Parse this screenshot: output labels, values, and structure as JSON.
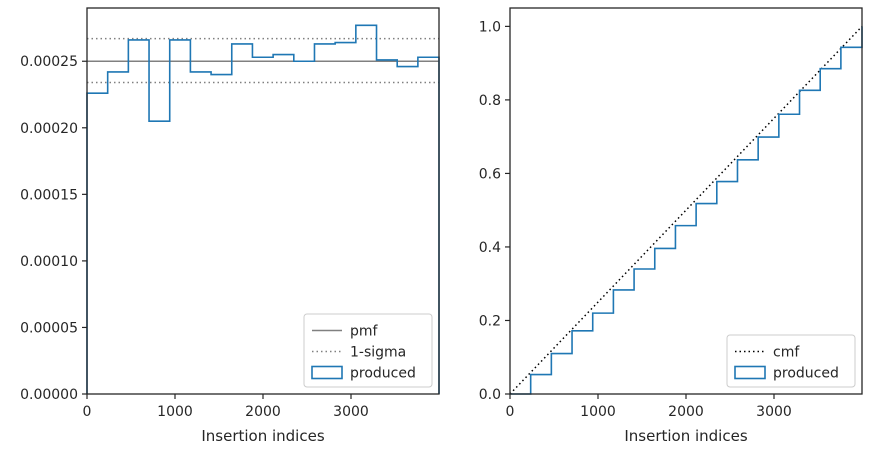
{
  "chart_data": [
    {
      "type": "histogram",
      "xlabel": "Insertion indices",
      "ylabel": "",
      "xlim": [
        0,
        4000
      ],
      "ylim": [
        0,
        0.00029
      ],
      "xticks": [
        0,
        1000,
        2000,
        3000
      ],
      "xtick_labels": [
        "0",
        "1000",
        "2000",
        "3000"
      ],
      "yticks": [
        0,
        5e-05,
        0.0001,
        0.00015,
        0.0002,
        0.00025
      ],
      "ytick_labels": [
        "0.00000",
        "0.00005",
        "0.00010",
        "0.00015",
        "0.00020",
        "0.00025"
      ],
      "bin_edges": [
        0,
        235,
        470,
        705,
        940,
        1175,
        1410,
        1645,
        1880,
        2115,
        2350,
        2585,
        2820,
        3055,
        3290,
        3525,
        3760,
        4000
      ],
      "series": [
        {
          "name": "produced",
          "style": "step",
          "color": "#1f77b4",
          "values": [
            0.000226,
            0.000242,
            0.000266,
            0.000205,
            0.000266,
            0.000242,
            0.00024,
            0.000263,
            0.000253,
            0.000255,
            0.00025,
            0.000263,
            0.000264,
            0.000277,
            0.000251,
            0.000246,
            0.000253
          ]
        }
      ],
      "reference_lines": [
        {
          "name": "pmf",
          "value": 0.00025,
          "style": "solid",
          "color": "#808080"
        },
        {
          "name": "1-sigma",
          "values": [
            0.000267,
            0.000234
          ],
          "style": "dotted",
          "color": "#808080"
        }
      ],
      "legend": {
        "placement": "lower-right",
        "entries": [
          {
            "label": "pmf",
            "kind": "solid-line",
            "color": "#808080"
          },
          {
            "label": "1-sigma",
            "kind": "dotted-line",
            "color": "#808080"
          },
          {
            "label": "produced",
            "kind": "patch",
            "color": "#1f77b4"
          }
        ]
      },
      "grid": false
    },
    {
      "type": "line",
      "xlabel": "Insertion indices",
      "ylabel": "",
      "xlim": [
        0,
        4000
      ],
      "ylim": [
        0,
        1.05
      ],
      "xticks": [
        0,
        1000,
        2000,
        3000
      ],
      "xtick_labels": [
        "0",
        "1000",
        "2000",
        "3000"
      ],
      "yticks": [
        0,
        0.2,
        0.4,
        0.6,
        0.8,
        1.0
      ],
      "ytick_labels": [
        "0.0",
        "0.2",
        "0.4",
        "0.6",
        "0.8",
        "1.0"
      ],
      "series": [
        {
          "name": "cmf",
          "style": "dotted",
          "color": "#000000",
          "x": [
            0,
            4000
          ],
          "y": [
            0,
            1.0
          ]
        },
        {
          "name": "produced",
          "style": "step",
          "color": "#1f77b4",
          "x": [
            0,
            235,
            470,
            705,
            940,
            1175,
            1410,
            1645,
            1880,
            2115,
            2350,
            2585,
            2820,
            3055,
            3290,
            3525,
            3760,
            4000
          ],
          "y": [
            0,
            0.053,
            0.11,
            0.172,
            0.22,
            0.283,
            0.34,
            0.396,
            0.458,
            0.518,
            0.578,
            0.637,
            0.699,
            0.761,
            0.826,
            0.885,
            0.943,
            1.0
          ]
        }
      ],
      "legend": {
        "placement": "lower-right",
        "entries": [
          {
            "label": "cmf",
            "kind": "dotted-line",
            "color": "#000000"
          },
          {
            "label": "produced",
            "kind": "patch",
            "color": "#1f77b4"
          }
        ]
      },
      "grid": false
    }
  ]
}
